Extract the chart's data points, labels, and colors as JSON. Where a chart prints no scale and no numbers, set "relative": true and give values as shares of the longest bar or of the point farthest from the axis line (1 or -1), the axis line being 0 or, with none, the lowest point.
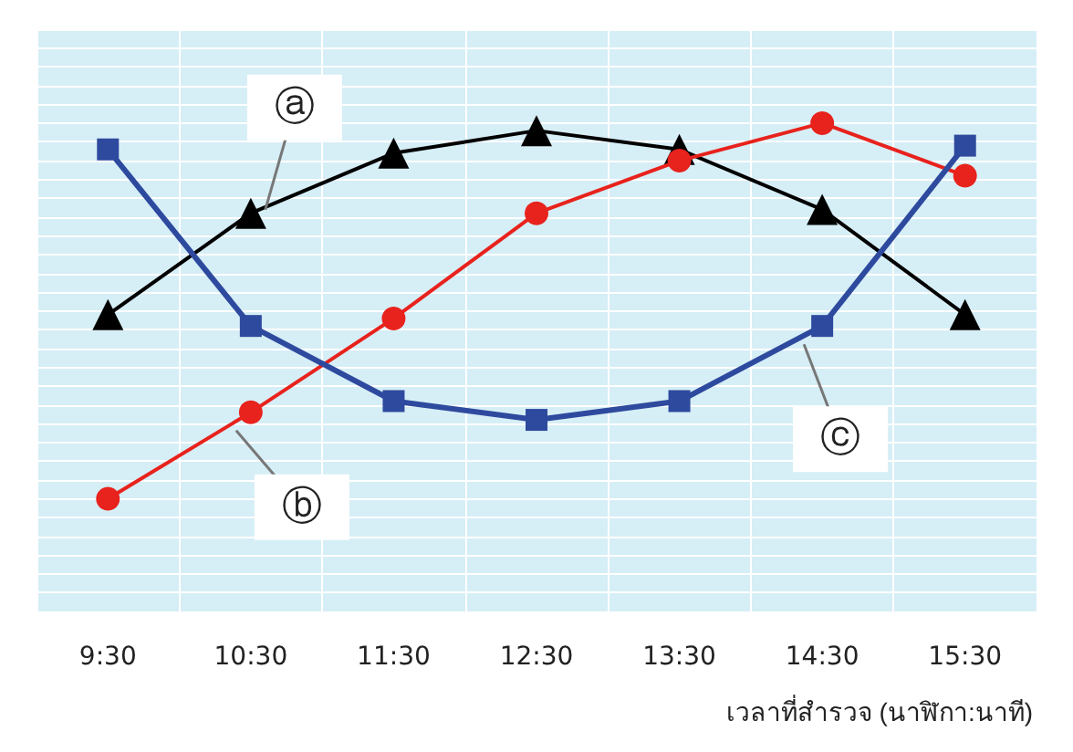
{
  "chart_data": {
    "type": "line",
    "relative": true,
    "xlabel": "เวลาที่สำรวจ (นาฬิกา:นาที)",
    "categories": [
      "9:30",
      "10:30",
      "11:30",
      "12:30",
      "13:30",
      "14:30",
      "15:30"
    ],
    "series": [
      {
        "color": "#000000",
        "marker": "triangle",
        "values": [
          0.49,
          0.76,
          0.92,
          0.98,
          0.93,
          0.77,
          0.49
        ]
      },
      {
        "color": "#e8221c",
        "marker": "circle",
        "values": [
          0,
          0.23,
          0.48,
          0.76,
          0.9,
          1,
          0.86
        ]
      },
      {
        "color": "#2e4a9e",
        "marker": "square",
        "values": [
          0.93,
          0.46,
          0.26,
          0.21,
          0.26,
          0.46,
          0.94
        ]
      }
    ],
    "annotations": [
      {
        "text": "ⓐ",
        "x": "10:30",
        "y": 0.76
      },
      {
        "text": "ⓑ",
        "x": "10:30",
        "y": 0.23
      },
      {
        "text": "ⓒ",
        "x": "14:30",
        "y": 0.46
      }
    ],
    "grid": true,
    "line_style": "solid"
  }
}
